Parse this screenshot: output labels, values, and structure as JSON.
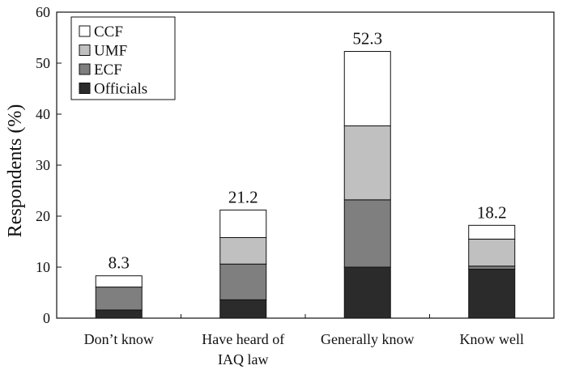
{
  "chart_data": {
    "type": "bar",
    "stacked": true,
    "ylabel": "Respondents (%)",
    "xlabel": "",
    "ylim": [
      0,
      60
    ],
    "yticks": [
      0,
      10,
      20,
      30,
      40,
      50,
      60
    ],
    "grid": false,
    "legend_position": "top-left",
    "categories": [
      [
        "Don’t know"
      ],
      [
        "Have heard of",
        "IAQ law"
      ],
      [
        "Generally know"
      ],
      [
        "Know well"
      ]
    ],
    "series": [
      {
        "name": "Officials",
        "color": "#2b2b2b",
        "values": [
          1.6,
          3.6,
          10.0,
          9.6
        ]
      },
      {
        "name": "ECF",
        "color": "#7f7f7f",
        "values": [
          4.5,
          7.0,
          13.2,
          0.6
        ]
      },
      {
        "name": "UMF",
        "color": "#c0c0c0",
        "values": [
          0.0,
          5.2,
          14.5,
          5.3
        ]
      },
      {
        "name": "CCF",
        "color": "#ffffff",
        "values": [
          2.2,
          5.4,
          14.6,
          2.7
        ]
      }
    ],
    "totals": [
      8.3,
      21.2,
      52.3,
      18.2
    ],
    "total_labels": [
      "8.3",
      "21.2",
      "52.3",
      "18.2"
    ]
  }
}
